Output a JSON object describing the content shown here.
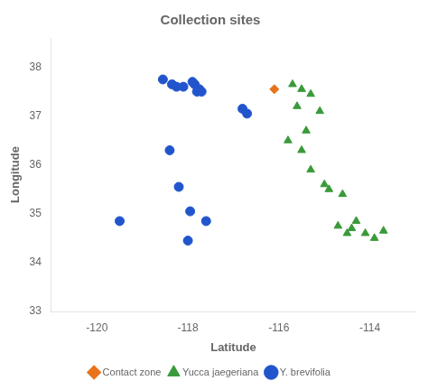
{
  "chart_data": {
    "type": "scatter",
    "title": "Collection sites",
    "xlabel": "Latitude",
    "ylabel": "Longitude",
    "xlim": [
      -121,
      -113
    ],
    "ylim": [
      33,
      38.6
    ],
    "xticks": [
      -120,
      -118,
      -116,
      -114
    ],
    "yticks": [
      33,
      34,
      35,
      36,
      37,
      38
    ],
    "grid": false,
    "legend": "bottom",
    "series": [
      {
        "name": "Contact zone",
        "color": "#e8731a",
        "marker": "diamond",
        "x": [
          -116.1
        ],
        "values": [
          37.55
        ]
      },
      {
        "name": "Yucca jaegeriana",
        "color": "#3a9a3a",
        "marker": "triangle",
        "x": [
          -115.7,
          -115.5,
          -115.3,
          -115.6,
          -115.1,
          -115.4,
          -115.8,
          -115.5,
          -115.3,
          -115.0,
          -114.9,
          -114.6,
          -114.3,
          -114.4,
          -114.1,
          -113.9,
          -114.7,
          -114.5,
          -113.7
        ],
        "values": [
          37.65,
          37.55,
          37.45,
          37.2,
          37.1,
          36.7,
          36.5,
          36.3,
          35.9,
          35.6,
          35.5,
          35.4,
          34.85,
          34.7,
          34.6,
          34.5,
          34.75,
          34.6,
          34.65
        ]
      },
      {
        "name": "Y. brevifolia",
        "color": "#2255cc",
        "marker": "circle",
        "x": [
          -118.55,
          -118.35,
          -118.25,
          -118.1,
          -117.9,
          -117.85,
          -117.8,
          -117.75,
          -117.7,
          -116.8,
          -118.4,
          -118.2,
          -117.95,
          -117.6,
          -116.7,
          -119.5,
          -118.0
        ],
        "values": [
          37.75,
          37.65,
          37.6,
          37.6,
          37.7,
          37.65,
          37.5,
          37.55,
          37.5,
          37.15,
          36.3,
          35.55,
          35.05,
          34.85,
          37.05,
          34.85,
          34.45
        ]
      }
    ]
  }
}
